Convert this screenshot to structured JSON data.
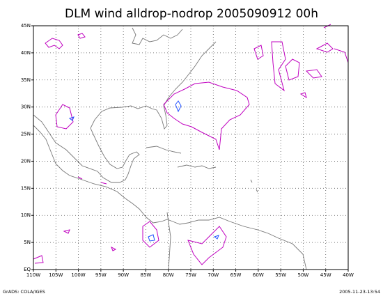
{
  "chart_data": {
    "type": "map",
    "title": "DLM wind alldrop-nodrop 2005090912 00h",
    "xlim": [
      -110,
      -40
    ],
    "ylim": [
      0,
      45
    ],
    "grid": true,
    "xticks": [
      {
        "value": -110,
        "label": "110W"
      },
      {
        "value": -105,
        "label": "105W"
      },
      {
        "value": -100,
        "label": "100W"
      },
      {
        "value": -95,
        "label": "95W"
      },
      {
        "value": -90,
        "label": "90W"
      },
      {
        "value": -85,
        "label": "85W"
      },
      {
        "value": -80,
        "label": "80W"
      },
      {
        "value": -75,
        "label": "75W"
      },
      {
        "value": -70,
        "label": "70W"
      },
      {
        "value": -65,
        "label": "65W"
      },
      {
        "value": -60,
        "label": "60W"
      },
      {
        "value": -55,
        "label": "55W"
      },
      {
        "value": -50,
        "label": "50W"
      },
      {
        "value": -45,
        "label": "45W"
      },
      {
        "value": -40,
        "label": "40W"
      }
    ],
    "yticks": [
      {
        "value": 0,
        "label": "EQ"
      },
      {
        "value": 5,
        "label": "5N"
      },
      {
        "value": 10,
        "label": "10N"
      },
      {
        "value": 15,
        "label": "15N"
      },
      {
        "value": 20,
        "label": "20N"
      },
      {
        "value": 25,
        "label": "25N"
      },
      {
        "value": 30,
        "label": "30N"
      },
      {
        "value": 35,
        "label": "35N"
      },
      {
        "value": 40,
        "label": "40N"
      },
      {
        "value": 45,
        "label": "45N"
      }
    ]
  },
  "footer": {
    "left": "GrADS: COLA/IGES",
    "right": "2005-11-23-13:54"
  }
}
